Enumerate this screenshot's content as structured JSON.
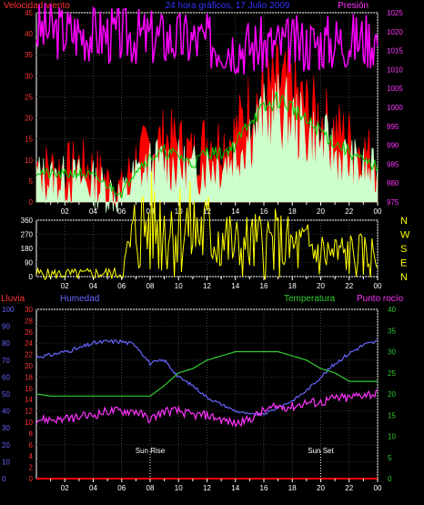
{
  "chart_data": [
    {
      "type": "line",
      "title": "24 hora gráficos, 17 Julio 2009",
      "left_axis_label": "Velocidad viento",
      "right_axis_label": "Presión",
      "ylim_left": [
        0,
        45
      ],
      "ylim_right": [
        975,
        1025
      ],
      "yticks_left": [
        "0",
        "5",
        "10",
        "15",
        "20",
        "25",
        "30",
        "35",
        "40",
        "45"
      ],
      "yticks_right": [
        "975",
        "980",
        "985",
        "990",
        "995",
        "1000",
        "1005",
        "1010",
        "1015",
        "1020",
        "1025"
      ],
      "xticks": [
        "02",
        "04",
        "06",
        "08",
        "10",
        "12",
        "14",
        "16",
        "18",
        "20",
        "22",
        "00"
      ],
      "x_hours": [
        0,
        1,
        2,
        3,
        4,
        5,
        6,
        7,
        8,
        9,
        10,
        11,
        12,
        13,
        14,
        15,
        16,
        17,
        18,
        19,
        20,
        21,
        22,
        23,
        24
      ],
      "series": [
        {
          "name": "gust",
          "color": "#ff0000",
          "values": [
            9,
            8,
            8,
            9,
            8,
            5,
            3,
            10,
            13,
            15,
            14,
            11,
            15,
            14,
            16,
            23,
            25,
            28,
            26,
            22,
            20,
            17,
            15,
            12,
            11
          ]
        },
        {
          "name": "avg",
          "color": "#ccffcc",
          "values": [
            6,
            5,
            5,
            5,
            4,
            3,
            1,
            6,
            8,
            9,
            8,
            7,
            9,
            9,
            11,
            16,
            19,
            21,
            19,
            16,
            14,
            11,
            9,
            7,
            6
          ]
        },
        {
          "name": "pressure",
          "color": "#ff00ff",
          "values": [
            1020.5,
            1020.3,
            1020.1,
            1019.8,
            1019.5,
            1019.2,
            1019.0,
            1018.8,
            1018.6,
            1018.4,
            1018.1,
            1017.8,
            1017.4,
            1017.0,
            1016.5,
            1016.2,
            1016.2,
            1016.4,
            1016.6,
            1016.9,
            1017.2,
            1017.5,
            1017.8,
            1018.0,
            1018.2
          ]
        }
      ]
    },
    {
      "type": "line",
      "ylim": [
        0,
        360
      ],
      "yticks": [
        "0",
        "90",
        "180",
        "270",
        "360"
      ],
      "compass_labels": [
        "N",
        "W",
        "S",
        "E",
        "N"
      ],
      "xticks": [
        "02",
        "04",
        "06",
        "08",
        "10",
        "12",
        "14",
        "16",
        "18",
        "20",
        "22",
        "00"
      ],
      "series": [
        {
          "name": "direction",
          "color": "#ffff00",
          "values": [
            20,
            15,
            18,
            15,
            20,
            20,
            20,
            300,
            330,
            330,
            320,
            300,
            280,
            260,
            180,
            200,
            210,
            210,
            180,
            180,
            150,
            140,
            140,
            130,
            130
          ]
        }
      ]
    },
    {
      "type": "line",
      "rain_label": "Lluvia",
      "humidity_label": "Humedad",
      "temp_label": "Temperatura",
      "dew_label": "Punto rocío",
      "humidity_ticks": [
        "0",
        "10",
        "20",
        "30",
        "40",
        "50",
        "60",
        "70",
        "80",
        "90",
        "100"
      ],
      "rain_ticks": [
        "0",
        "2",
        "4",
        "6",
        "8",
        "10",
        "12",
        "14",
        "16",
        "18",
        "20",
        "22",
        "24",
        "26",
        "28",
        "30"
      ],
      "temp_ticks": [
        "0",
        "5",
        "10",
        "15",
        "20",
        "25",
        "30",
        "35",
        "40"
      ],
      "xticks": [
        "02",
        "04",
        "06",
        "08",
        "10",
        "12",
        "14",
        "16",
        "18",
        "20",
        "22",
        "00"
      ],
      "annotations": [
        {
          "text": "Sun Rise",
          "hour": 8
        },
        {
          "text": "Sun Set",
          "hour": 20
        }
      ],
      "series": [
        {
          "name": "humidity",
          "color": "#6666ff",
          "ylim": [
            0,
            100
          ],
          "values": [
            72,
            73,
            75,
            77,
            80,
            81,
            81,
            79,
            68,
            70,
            60,
            55,
            48,
            44,
            40,
            38,
            38,
            42,
            46,
            52,
            60,
            68,
            74,
            79,
            81
          ]
        },
        {
          "name": "temperature",
          "color": "#33cc33",
          "ylim": [
            0,
            40
          ],
          "values": [
            20,
            19.5,
            19.5,
            19.5,
            19.5,
            19.5,
            19.5,
            19.5,
            19.5,
            22,
            25,
            26,
            28,
            29,
            30,
            30,
            30,
            30,
            29,
            28,
            26,
            25,
            23,
            23,
            23
          ]
        },
        {
          "name": "dewpoint",
          "color": "#ff33ff",
          "ylim": [
            0,
            40
          ],
          "values": [
            14,
            14,
            14,
            14.5,
            15,
            16,
            16,
            16,
            14,
            16,
            16,
            15,
            15,
            14,
            13,
            14,
            16,
            17,
            17,
            18,
            18,
            19,
            19,
            20,
            20
          ]
        },
        {
          "name": "rain",
          "color": "#ff0000",
          "ylim": [
            0,
            30
          ],
          "values": [
            0,
            0,
            0,
            0,
            0,
            0,
            0,
            0,
            0,
            0,
            0,
            0,
            0,
            0,
            0,
            0,
            0,
            0,
            0,
            0,
            0,
            0,
            0,
            0,
            0
          ]
        }
      ]
    }
  ]
}
